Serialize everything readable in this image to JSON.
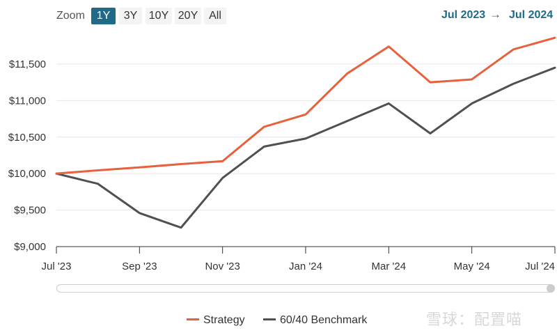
{
  "toolbar": {
    "zoom_label": "Zoom",
    "zoom_buttons": [
      "1Y",
      "3Y",
      "10Y",
      "20Y",
      "All"
    ],
    "active_zoom": "1Y",
    "range_from": "Jul 2023",
    "range_arrow": "→",
    "range_to": "Jul 2024"
  },
  "colors": {
    "strategy": "#e8603c",
    "benchmark": "#505050",
    "accent": "#1e6a88",
    "grid": "#e6e6e6"
  },
  "chart_data": {
    "type": "line",
    "title": "",
    "xlabel": "",
    "ylabel": "",
    "x": [
      "2023-07",
      "2023-08",
      "2023-09",
      "2023-10",
      "2023-11",
      "2023-12",
      "2024-01",
      "2024-02",
      "2024-03",
      "2024-04",
      "2024-05",
      "2024-06",
      "2024-07"
    ],
    "x_tick_labels": [
      "Jul '23",
      "Sep '23",
      "Nov '23",
      "Jan '24",
      "Mar '24",
      "May '24",
      "Jul '24"
    ],
    "y_ticks": [
      9000,
      9500,
      10000,
      10500,
      11000,
      11500
    ],
    "y_tick_labels": [
      "$9,000",
      "$9,500",
      "$10,000",
      "$10,500",
      "$11,000",
      "$11,500"
    ],
    "ylim": [
      9000,
      11900
    ],
    "grid": true,
    "legend_position": "bottom-center",
    "series": [
      {
        "name": "Strategy",
        "values": [
          10000,
          10045,
          10085,
          10130,
          10170,
          10640,
          10810,
          11370,
          11740,
          11250,
          11290,
          11700,
          11860
        ]
      },
      {
        "name": "60/40 Benchmark",
        "values": [
          10000,
          9860,
          9460,
          9260,
          9940,
          10370,
          10480,
          10720,
          10960,
          10550,
          10960,
          11230,
          11450
        ]
      }
    ]
  },
  "watermark": "雪球：配置喵"
}
